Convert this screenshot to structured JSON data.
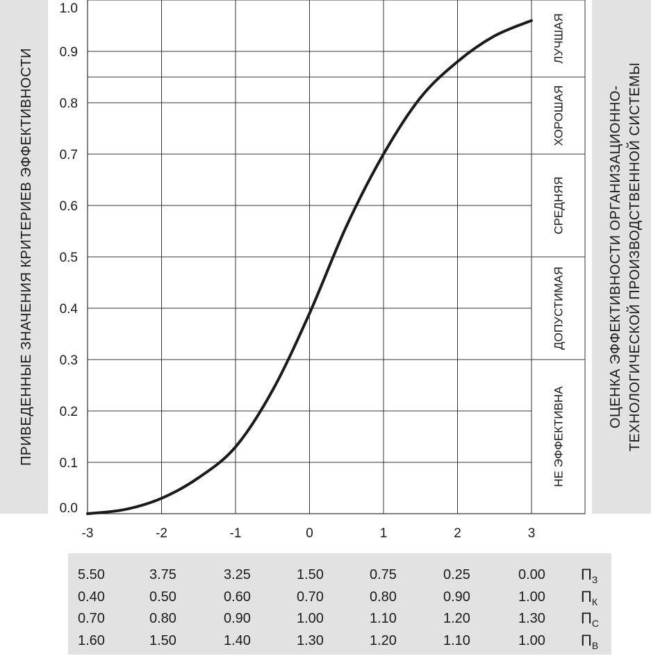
{
  "chart_data": {
    "type": "line",
    "ylabel": "ПРИВЕДЕННЫЕ ЗНАЧЕНИЯ КРИТЕРИЕВ ЭФФЕКТИВНОСТИ",
    "right_title_line1": "ОЦЕНКА ЭФФЕКТИВНОСТИ ОРГАНИЗАЦИОННО-",
    "right_title_line2": "ТЕХНОЛОГИЧЕСКОЙ ПРОИЗВОДСТВЕННОЙ СИСТЕМЫ",
    "xlim": [
      -3,
      3
    ],
    "ylim": [
      0,
      1
    ],
    "x_ticks": [
      "-3",
      "-2",
      "-1",
      "0",
      "1",
      "2",
      "3"
    ],
    "y_ticks": [
      "0.0",
      "0.1",
      "0.2",
      "0.3",
      "0.4",
      "0.5",
      "0.6",
      "0.7",
      "0.8",
      "0.9",
      "1.0"
    ],
    "grid": true,
    "series": [
      {
        "x": [
          -3.0,
          -2.5,
          -2.0,
          -1.5,
          -1.0,
          -0.5,
          0.0,
          0.5,
          1.0,
          1.5,
          2.0,
          2.5,
          3.0
        ],
        "y": [
          0.0,
          0.008,
          0.03,
          0.07,
          0.13,
          0.24,
          0.39,
          0.56,
          0.7,
          0.81,
          0.88,
          0.93,
          0.96
        ]
      }
    ],
    "bands": [
      {
        "label": "ЛУЧШАЯ",
        "from": 0.85,
        "to": 1.0
      },
      {
        "label": "ХОРОШАЯ",
        "from": 0.7,
        "to": 0.85
      },
      {
        "label": "СРЕДНЯЯ",
        "from": 0.5,
        "to": 0.7
      },
      {
        "label": "ДОПУСТИМАЯ",
        "from": 0.3,
        "to": 0.5
      },
      {
        "label": "НЕ ЭФФЕКТИВНА",
        "from": 0.0,
        "to": 0.3
      }
    ]
  },
  "coefficient_table": {
    "rows": [
      {
        "symbol": "П",
        "sub": "З",
        "values": [
          "5.50",
          "3.75",
          "3.25",
          "1.50",
          "0.75",
          "0.25",
          "0.00"
        ]
      },
      {
        "symbol": "П",
        "sub": "К",
        "values": [
          "0.40",
          "0.50",
          "0.60",
          "0.70",
          "0.80",
          "0.90",
          "1.00"
        ]
      },
      {
        "symbol": "П",
        "sub": "С",
        "values": [
          "0.70",
          "0.80",
          "0.90",
          "1.00",
          "1.10",
          "1.20",
          "1.30"
        ]
      },
      {
        "symbol": "П",
        "sub": "В",
        "values": [
          "1.60",
          "1.50",
          "1.40",
          "1.30",
          "1.20",
          "1.10",
          "1.00"
        ]
      }
    ]
  }
}
